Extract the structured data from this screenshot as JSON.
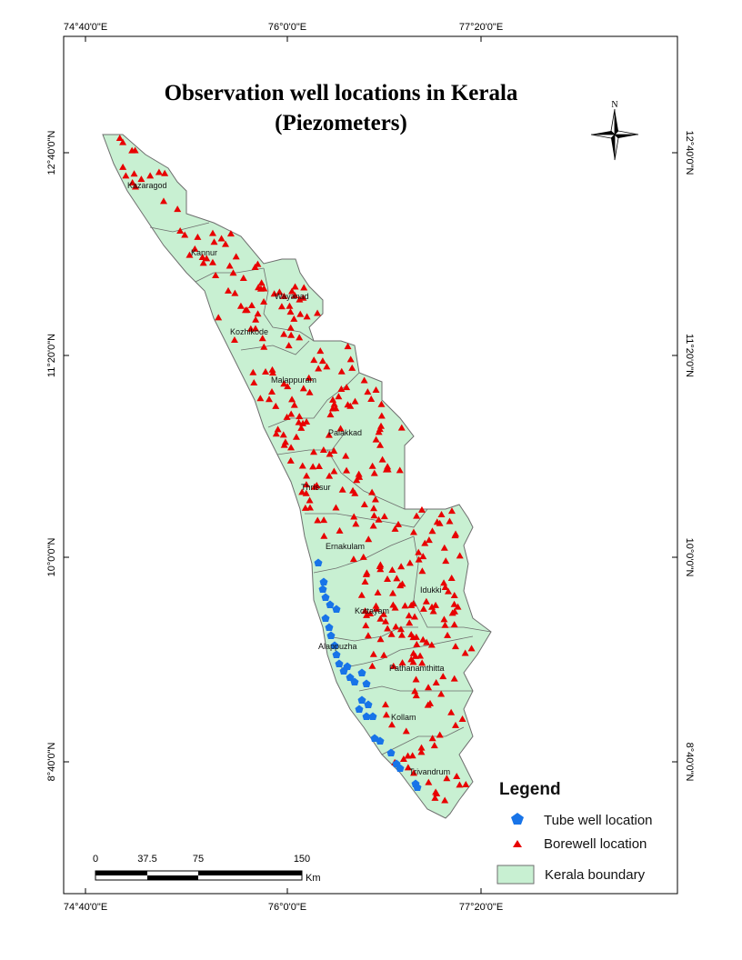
{
  "title": {
    "line1": "Observation well locations in Kerala",
    "line2": "(Piezometers)"
  },
  "graticule": {
    "longitudes": [
      "74°40'0\"E",
      "76°0'0\"E",
      "77°20'0\"E"
    ],
    "latitudes": [
      "12°40'0\"N",
      "11°20'0\"N",
      "10°0'0\"N",
      "8°40'0\"N"
    ]
  },
  "north_arrow": {
    "label": "N",
    "icon": "compass-rose-icon"
  },
  "districts": [
    "Kazaragod",
    "Kannur",
    "Wayanad",
    "Kozhikode",
    "Malappuram",
    "Palakkad",
    "Thrissur",
    "Ernakulam",
    "Idukki",
    "Kottayam",
    "Alappuzha",
    "Pathanamthitta",
    "Kollam",
    "Trivandrum"
  ],
  "legend": {
    "title": "Legend",
    "items": [
      {
        "label": "Tube well location",
        "symbol": "pentagon",
        "color": "#1874e8"
      },
      {
        "label": "Borewell location",
        "symbol": "triangle",
        "color": "#e80000"
      },
      {
        "label": "Kerala boundary",
        "symbol": "rectangle",
        "color": "#c8f0d2"
      }
    ]
  },
  "scale_bar": {
    "ticks": [
      "0",
      "37.5",
      "75",
      "150"
    ],
    "unit": "Km"
  },
  "colors": {
    "land": "#c8f0d2",
    "boundary": "#6e6e6e",
    "borewell": "#e80000",
    "tubewell": "#1874e8"
  }
}
